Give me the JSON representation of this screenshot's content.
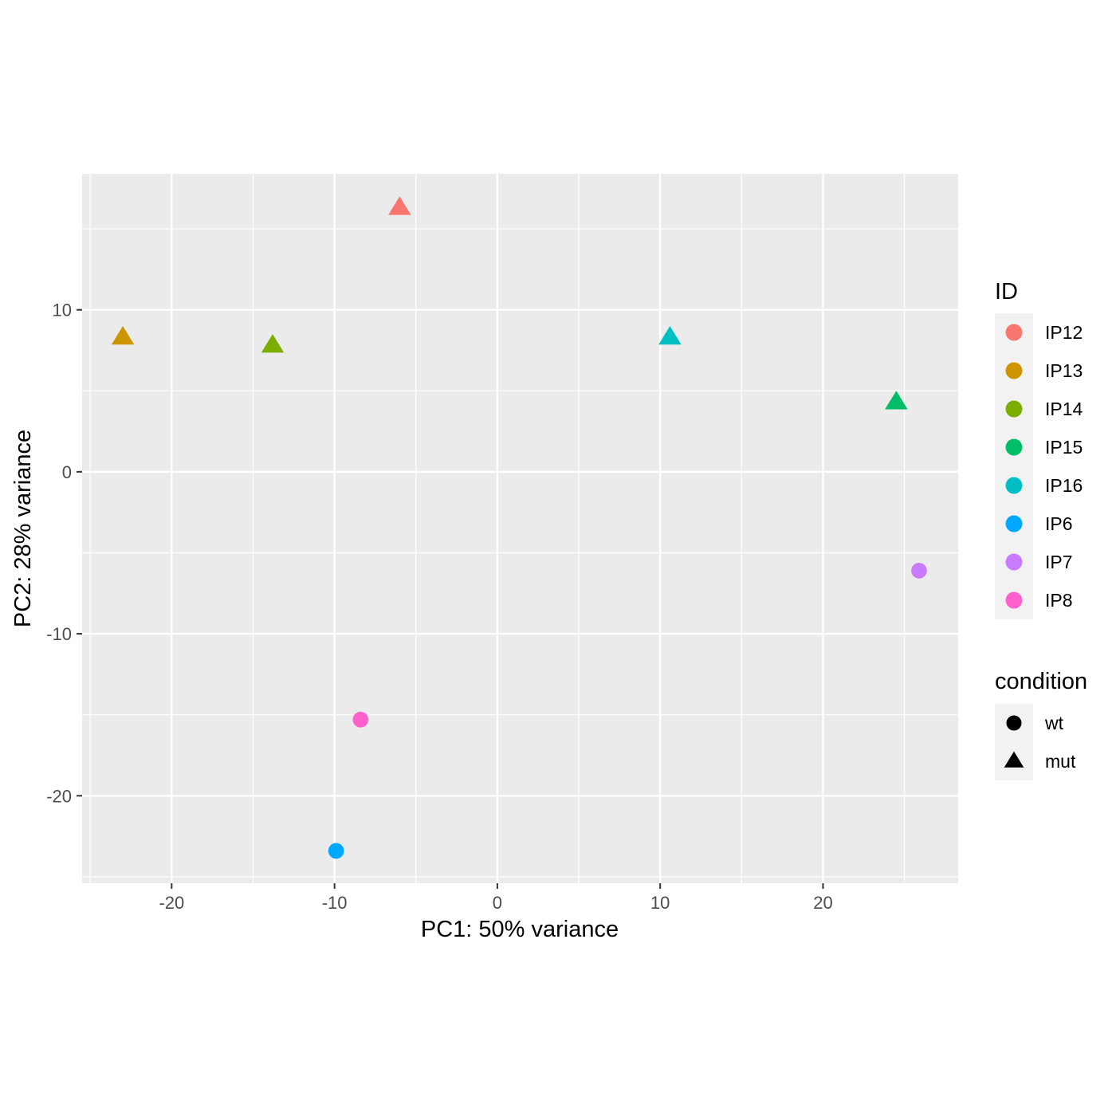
{
  "chart_data": {
    "type": "scatter",
    "xlabel": "PC1: 50% variance",
    "ylabel": "PC2: 28% variance",
    "xlim": [
      -25.5,
      28.3
    ],
    "ylim": [
      -25.4,
      18.4
    ],
    "x_ticks": [
      -20,
      -10,
      0,
      10,
      20
    ],
    "y_ticks": [
      -20,
      -10,
      0,
      10
    ],
    "x_tick_labels": [
      "-20",
      "-10",
      "0",
      "10",
      "20"
    ],
    "y_tick_labels": [
      "-20",
      "-10",
      "0",
      "10"
    ],
    "grid": true,
    "legend_position": "right",
    "points": [
      {
        "id": "IP12",
        "condition": "mut",
        "x": -6.0,
        "y": 16.3
      },
      {
        "id": "IP13",
        "condition": "mut",
        "x": -23.0,
        "y": 8.3
      },
      {
        "id": "IP14",
        "condition": "mut",
        "x": -13.8,
        "y": 7.8
      },
      {
        "id": "IP15",
        "condition": "mut",
        "x": 24.5,
        "y": 4.3
      },
      {
        "id": "IP16",
        "condition": "mut",
        "x": 10.6,
        "y": 8.3
      },
      {
        "id": "IP6",
        "condition": "wt",
        "x": -9.9,
        "y": -23.4
      },
      {
        "id": "IP7",
        "condition": "wt",
        "x": 25.9,
        "y": -6.1
      },
      {
        "id": "IP8",
        "condition": "wt",
        "x": -8.4,
        "y": -15.3
      }
    ],
    "legend_color": {
      "title": "ID",
      "entries": [
        {
          "label": "IP12",
          "color": "#F8766D"
        },
        {
          "label": "IP13",
          "color": "#CD9600"
        },
        {
          "label": "IP14",
          "color": "#7CAE00"
        },
        {
          "label": "IP15",
          "color": "#00BE67"
        },
        {
          "label": "IP16",
          "color": "#00BFC4"
        },
        {
          "label": "IP6",
          "color": "#00A9FF"
        },
        {
          "label": "IP7",
          "color": "#C77CFF"
        },
        {
          "label": "IP8",
          "color": "#FF61CC"
        }
      ]
    },
    "legend_shape": {
      "title": "condition",
      "entries": [
        {
          "label": "wt",
          "shape": "circle"
        },
        {
          "label": "mut",
          "shape": "triangle"
        }
      ]
    },
    "colors": {
      "panel_background": "#EBEBEB",
      "grid": "#FFFFFF",
      "legend_key_background": "#F2F2F2"
    }
  }
}
